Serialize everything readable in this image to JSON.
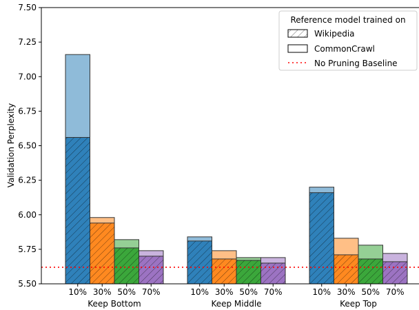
{
  "chart_data": {
    "type": "bar",
    "ylabel": "Validation Perplexity",
    "ylim": [
      5.5,
      7.5
    ],
    "yticks": [
      "5.50",
      "5.75",
      "6.00",
      "6.25",
      "6.50",
      "6.75",
      "7.00",
      "7.25",
      "7.50"
    ],
    "groups": [
      "Keep Bottom",
      "Keep Middle",
      "Keep Top"
    ],
    "categories": [
      "10%",
      "30%",
      "50%",
      "70%"
    ],
    "category_colors": [
      "#1f77b4",
      "#ff7f0e",
      "#2ca02c",
      "#9467bd"
    ],
    "series": [
      {
        "name": "Wikipedia",
        "hatch": "diagonal",
        "values": [
          [
            6.56,
            5.94,
            5.76,
            5.7
          ],
          [
            5.81,
            5.68,
            5.67,
            5.65
          ],
          [
            6.16,
            5.71,
            5.68,
            5.66
          ]
        ]
      },
      {
        "name": "CommonCrawl",
        "hatch": "none",
        "values": [
          [
            7.16,
            5.98,
            5.82,
            5.74
          ],
          [
            5.84,
            5.74,
            5.69,
            5.69
          ],
          [
            6.2,
            5.83,
            5.78,
            5.72
          ]
        ]
      }
    ],
    "baseline": {
      "name": "No Pruning Baseline",
      "value": 5.62,
      "color": "#ff0000",
      "style": "dotted"
    },
    "legend": {
      "title": "Reference model trained on",
      "placement": "top-right",
      "entries": [
        "Wikipedia",
        "CommonCrawl",
        "No Pruning Baseline"
      ]
    },
    "grid": false
  }
}
